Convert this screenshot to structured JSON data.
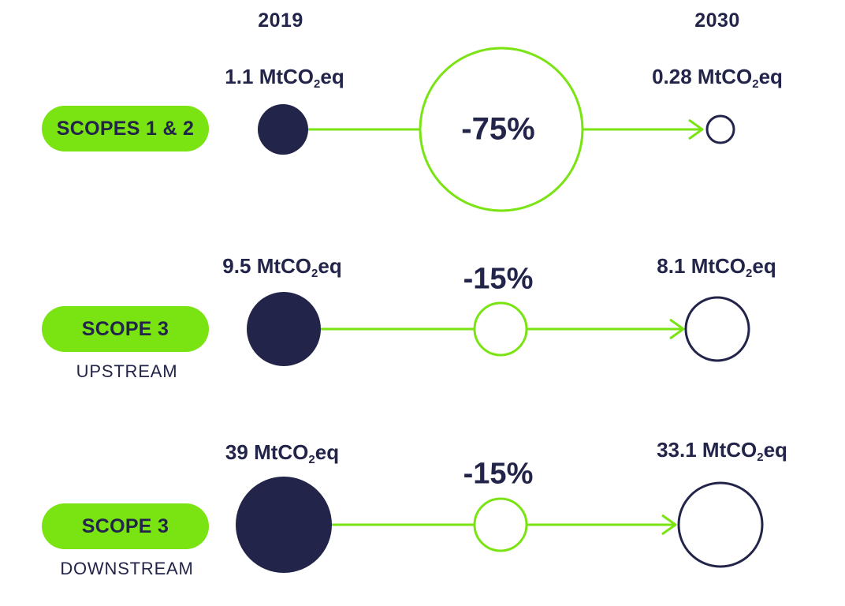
{
  "years": {
    "start": "2019",
    "end": "2030"
  },
  "colors": {
    "accent_green": "#7ae312",
    "navy": "#22244a"
  },
  "rows": [
    {
      "label": "SCOPES 1 & 2",
      "sublabel": "",
      "start_value": "1.1",
      "end_value": "0.28",
      "unit_prefix": "MtCO",
      "unit_sub": "2",
      "unit_suffix": "eq",
      "reduction": "-75%"
    },
    {
      "label": "SCOPE 3",
      "sublabel": "UPSTREAM",
      "start_value": "9.5",
      "end_value": "8.1",
      "unit_prefix": "MtCO",
      "unit_sub": "2",
      "unit_suffix": "eq",
      "reduction": "-15%"
    },
    {
      "label": "SCOPE 3",
      "sublabel": "DOWNSTREAM",
      "start_value": "39",
      "end_value": "33.1",
      "unit_prefix": "MtCO",
      "unit_sub": "2",
      "unit_suffix": "eq",
      "reduction": "-15%"
    }
  ]
}
